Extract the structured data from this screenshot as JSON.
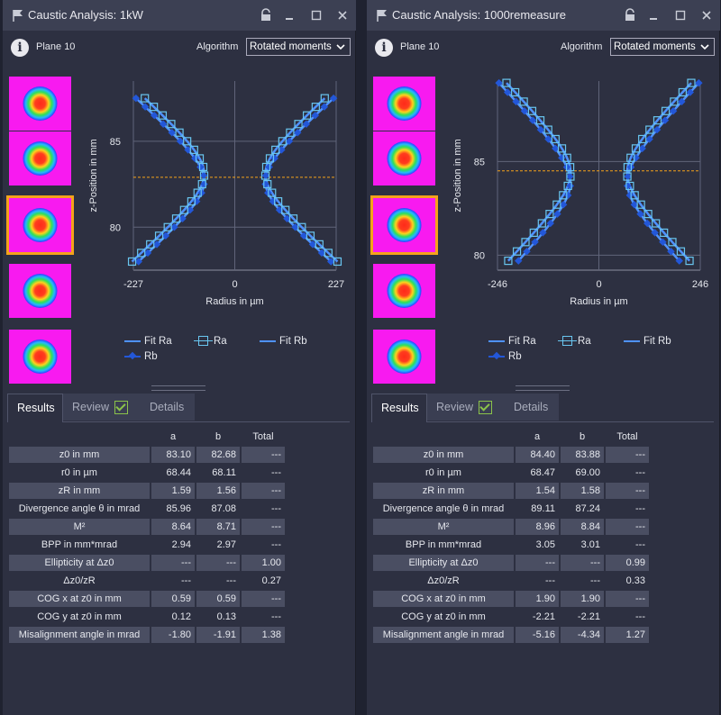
{
  "panels": [
    {
      "title": "Caustic Analysis: 1kW",
      "plane": "Plane 10",
      "algorithm_label": "Algorithm",
      "algorithm_value": "Rotated moments",
      "selected_thumb": 2,
      "tabs": [
        "Results",
        "Review",
        "Details"
      ],
      "chart_data": {
        "type": "scatter",
        "xlabel": "Radius in µm",
        "ylabel": "z-Position in mm",
        "xlim": [
          -227,
          227
        ],
        "xticks": [
          "-227",
          "0",
          "227"
        ],
        "ylim": [
          77.5,
          88.5
        ],
        "yticks": [
          "80",
          "85"
        ],
        "focus_line_z": 82.9,
        "z_values": [
          78.0,
          78.5,
          79.0,
          79.5,
          80.0,
          80.5,
          81.0,
          81.5,
          82.0,
          82.5,
          83.0,
          83.5,
          84.0,
          84.5,
          85.0,
          85.5,
          86.0,
          86.5,
          87.0,
          87.5
        ],
        "series": [
          {
            "name": "Fit Ra",
            "z0": 83.1,
            "r0": 68.44,
            "zr": 1.59
          },
          {
            "name": "Ra"
          },
          {
            "name": "Fit Rb",
            "z0": 82.68,
            "r0": 68.11,
            "zr": 1.56
          },
          {
            "name": "Rb"
          }
        ]
      },
      "results": {
        "headers": [
          "",
          "a",
          "b",
          "Total"
        ],
        "rows": [
          {
            "label": "z0 in mm",
            "a": "83.10",
            "b": "82.68",
            "total": "---"
          },
          {
            "label": "r0 in µm",
            "a": "68.44",
            "b": "68.11",
            "total": "---"
          },
          {
            "label": "zR in mm",
            "a": "1.59",
            "b": "1.56",
            "total": "---"
          },
          {
            "label": "Divergence angle θ in mrad",
            "a": "85.96",
            "b": "87.08",
            "total": "---"
          },
          {
            "label": "M²",
            "a": "8.64",
            "b": "8.71",
            "total": "---"
          },
          {
            "label": "BPP in mm*mrad",
            "a": "2.94",
            "b": "2.97",
            "total": "---"
          },
          {
            "label": "Ellipticity at Δz0",
            "a": "---",
            "b": "---",
            "total": "1.00"
          },
          {
            "label": "Δz0/zR",
            "a": "---",
            "b": "---",
            "total": "0.27"
          },
          {
            "label": "COG x at z0 in mm",
            "a": "0.59",
            "b": "0.59",
            "total": "---"
          },
          {
            "label": "COG y at z0 in mm",
            "a": "0.12",
            "b": "0.13",
            "total": "---"
          },
          {
            "label": "Misalignment angle in mrad",
            "a": "-1.80",
            "b": "-1.91",
            "total": "1.38"
          }
        ]
      }
    },
    {
      "title": "Caustic Analysis: 1000remeasure",
      "plane": "Plane 10",
      "algorithm_label": "Algorithm",
      "algorithm_value": "Rotated moments",
      "selected_thumb": 2,
      "tabs": [
        "Results",
        "Review",
        "Details"
      ],
      "chart_data": {
        "type": "scatter",
        "xlabel": "Radius in µm",
        "ylabel": "z-Position in mm",
        "xlim": [
          -246,
          246
        ],
        "xticks": [
          "-246",
          "0",
          "246"
        ],
        "ylim": [
          79.2,
          89.3
        ],
        "yticks": [
          "80",
          "85"
        ],
        "focus_line_z": 84.5,
        "z_values": [
          79.7,
          80.2,
          80.7,
          81.2,
          81.7,
          82.2,
          82.7,
          83.2,
          83.7,
          84.2,
          84.7,
          85.2,
          85.7,
          86.2,
          86.7,
          87.2,
          87.7,
          88.2,
          88.7,
          89.2
        ],
        "series": [
          {
            "name": "Fit Ra",
            "z0": 84.4,
            "r0": 68.47,
            "zr": 1.54
          },
          {
            "name": "Ra"
          },
          {
            "name": "Fit Rb",
            "z0": 83.88,
            "r0": 69.0,
            "zr": 1.58
          },
          {
            "name": "Rb"
          }
        ]
      },
      "results": {
        "headers": [
          "",
          "a",
          "b",
          "Total"
        ],
        "rows": [
          {
            "label": "z0 in mm",
            "a": "84.40",
            "b": "83.88",
            "total": "---"
          },
          {
            "label": "r0 in µm",
            "a": "68.47",
            "b": "69.00",
            "total": "---"
          },
          {
            "label": "zR in mm",
            "a": "1.54",
            "b": "1.58",
            "total": "---"
          },
          {
            "label": "Divergence angle θ in mrad",
            "a": "89.11",
            "b": "87.24",
            "total": "---"
          },
          {
            "label": "M²",
            "a": "8.96",
            "b": "8.84",
            "total": "---"
          },
          {
            "label": "BPP in mm*mrad",
            "a": "3.05",
            "b": "3.01",
            "total": "---"
          },
          {
            "label": "Ellipticity at Δz0",
            "a": "---",
            "b": "---",
            "total": "0.99"
          },
          {
            "label": "Δz0/zR",
            "a": "---",
            "b": "---",
            "total": "0.33"
          },
          {
            "label": "COG x at z0 in mm",
            "a": "1.90",
            "b": "1.90",
            "total": "---"
          },
          {
            "label": "COG y at z0 in mm",
            "a": "-2.21",
            "b": "-2.21",
            "total": "---"
          },
          {
            "label": "Misalignment angle in mrad",
            "a": "-5.16",
            "b": "-4.34",
            "total": "1.27"
          }
        ]
      }
    }
  ],
  "colors": {
    "panel_bg": "#2d3041",
    "titlebar_bg": "#3c4053",
    "selection": "#f5a21b",
    "fit_line": "#4f92ff",
    "ra_marker": "#69c6f0",
    "rb_marker": "#2357d8",
    "focus_line": "#f5a21b",
    "thumb_bg": "#f81af0"
  }
}
